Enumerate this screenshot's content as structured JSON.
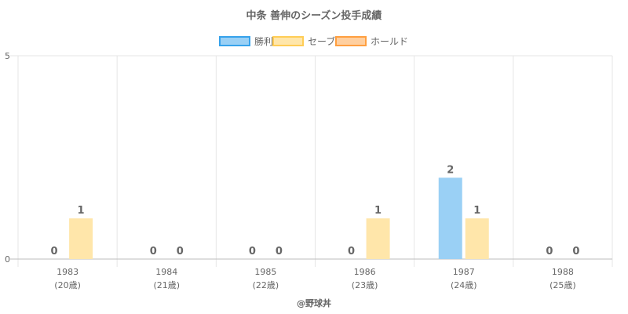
{
  "chart_data": {
    "type": "bar",
    "title": "中条 善伸のシーズン投手成績",
    "categories": [
      "1983",
      "1984",
      "1985",
      "1986",
      "1987",
      "1988"
    ],
    "age_labels": [
      "(20歳)",
      "(21歳)",
      "(22歳)",
      "(23歳)",
      "(24歳)",
      "(25歳)"
    ],
    "series": [
      {
        "name": "勝利",
        "values": [
          0,
          0,
          0,
          0,
          2,
          0
        ],
        "color": "#9ad0f5",
        "border": "#36a2eb"
      },
      {
        "name": "セーブ",
        "values": [
          1,
          0,
          0,
          1,
          1,
          0
        ],
        "color": "#ffe6aa",
        "border": "#ffcd56"
      },
      {
        "name": "ホールド",
        "values": [
          null,
          null,
          null,
          null,
          null,
          null
        ],
        "color": "#ffcf9f",
        "border": "#ff9f40"
      }
    ],
    "ylim": [
      0,
      5
    ],
    "y_ticks": [
      "0",
      "5"
    ],
    "grid": true,
    "legend": "top",
    "credit": "@野球丼"
  }
}
